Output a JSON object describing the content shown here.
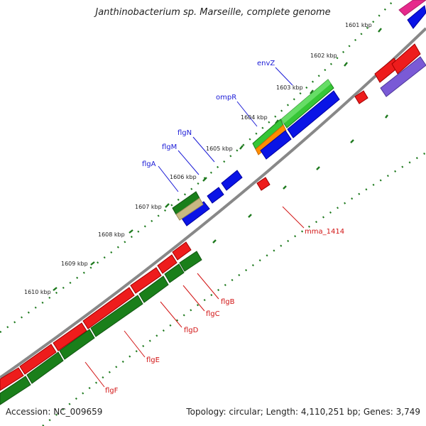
{
  "title": "Janthinobacterium sp. Marseille, complete genome",
  "footer": {
    "accession": "Accession: NC_009659",
    "summary": "Topology: circular; Length: 4,110,251 bp; Genes: 3,749"
  },
  "colors": {
    "backbone": "#888888",
    "tick": "#1e7a1e",
    "forward_cds": "#1a7f1a",
    "reverse_cds": "#ee1c1c",
    "blue_feature": "#0a14e6",
    "label_blue": "#1a1ad6",
    "label_red": "#d21414"
  },
  "ticks": [
    {
      "label": "1601 kbp"
    },
    {
      "label": "1602 kbp"
    },
    {
      "label": "1603 kbp"
    },
    {
      "label": "1604 kbp"
    },
    {
      "label": "1605 kbp"
    },
    {
      "label": "1606 kbp"
    },
    {
      "label": "1607 kbp"
    },
    {
      "label": "1608 kbp"
    },
    {
      "label": "1609 kbp"
    },
    {
      "label": "1610 kbp"
    }
  ],
  "gene_labels": [
    {
      "text": "envZ",
      "color": "blue"
    },
    {
      "text": "ompR",
      "color": "blue"
    },
    {
      "text": "flgN",
      "color": "blue"
    },
    {
      "text": "flgM",
      "color": "blue"
    },
    {
      "text": "flgA",
      "color": "blue"
    },
    {
      "text": "mma_1414",
      "color": "red"
    },
    {
      "text": "flgB",
      "color": "red"
    },
    {
      "text": "flgC",
      "color": "red"
    },
    {
      "text": "flgD",
      "color": "red"
    },
    {
      "text": "flgE",
      "color": "red"
    },
    {
      "text": "flgF",
      "color": "red"
    }
  ]
}
